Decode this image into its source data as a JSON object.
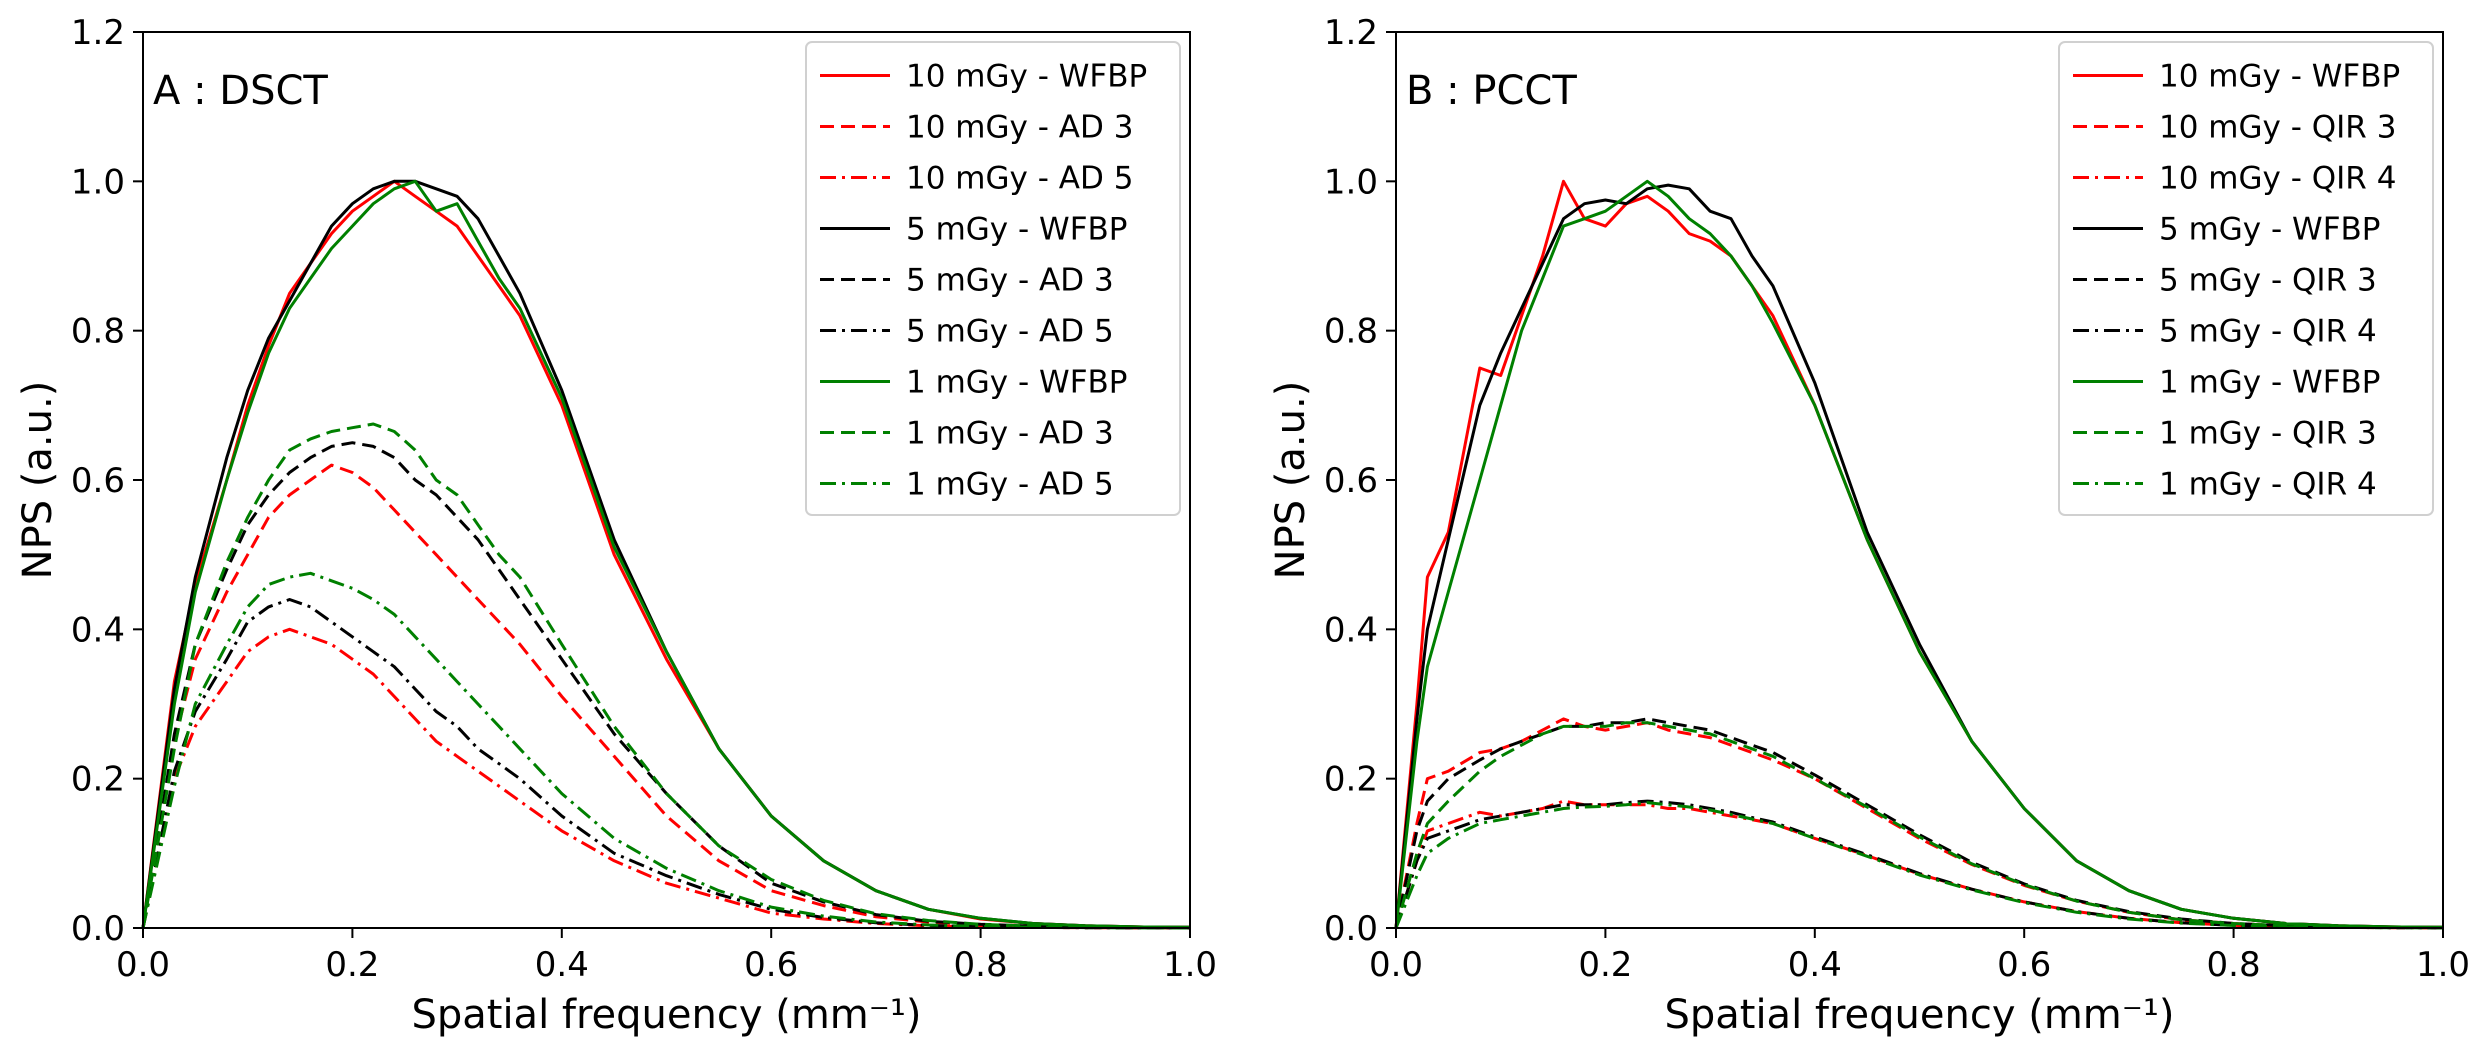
{
  "figure": {
    "description_free": true
  },
  "chart_data": [
    {
      "type": "line",
      "panel_label": "A : DSCT",
      "xlabel": "Spatial frequency (mm⁻¹)",
      "ylabel": "NPS (a.u.)",
      "xlim": [
        0,
        1.0
      ],
      "ylim": [
        0,
        1.2
      ],
      "xticks": [
        0.0,
        0.2,
        0.4,
        0.6,
        0.8,
        1.0
      ],
      "xtick_labels": [
        "0.0",
        "0.2",
        "0.4",
        "0.6",
        "0.8",
        "1.0"
      ],
      "yticks": [
        0.0,
        0.2,
        0.4,
        0.6,
        0.8,
        1.0,
        1.2
      ],
      "ytick_labels": [
        "0.0",
        "0.2",
        "0.4",
        "0.6",
        "0.8",
        "1.0",
        "1.2"
      ],
      "grid": false,
      "legend_position": "top-right",
      "x": [
        0.0,
        0.03,
        0.05,
        0.08,
        0.1,
        0.12,
        0.14,
        0.16,
        0.18,
        0.2,
        0.22,
        0.24,
        0.26,
        0.28,
        0.3,
        0.32,
        0.34,
        0.36,
        0.4,
        0.45,
        0.5,
        0.55,
        0.6,
        0.65,
        0.7,
        0.75,
        0.8,
        0.85,
        0.9,
        0.95,
        1.0
      ],
      "series": [
        {
          "name": "10 mGy - WFBP",
          "color": "#ff0000",
          "style": "solid",
          "values": [
            0.0,
            0.33,
            0.46,
            0.6,
            0.7,
            0.78,
            0.85,
            0.89,
            0.93,
            0.96,
            0.98,
            1.0,
            0.98,
            0.96,
            0.94,
            0.9,
            0.86,
            0.82,
            0.7,
            0.5,
            0.36,
            0.24,
            0.15,
            0.09,
            0.05,
            0.025,
            0.012,
            0.006,
            0.003,
            0.0015,
            0.001
          ]
        },
        {
          "name": "10 mGy - AD 3",
          "color": "#ff0000",
          "style": "dashed",
          "values": [
            0.0,
            0.25,
            0.36,
            0.45,
            0.5,
            0.55,
            0.58,
            0.6,
            0.62,
            0.61,
            0.59,
            0.56,
            0.53,
            0.5,
            0.47,
            0.44,
            0.41,
            0.38,
            0.31,
            0.23,
            0.15,
            0.09,
            0.05,
            0.03,
            0.015,
            0.008,
            0.004,
            0.002,
            0.001,
            0.0005,
            0.0003
          ]
        },
        {
          "name": "10 mGy - AD 5",
          "color": "#ff0000",
          "style": "dashdot",
          "values": [
            0.0,
            0.2,
            0.27,
            0.33,
            0.37,
            0.39,
            0.4,
            0.39,
            0.38,
            0.36,
            0.34,
            0.31,
            0.28,
            0.25,
            0.23,
            0.21,
            0.19,
            0.17,
            0.13,
            0.09,
            0.06,
            0.04,
            0.02,
            0.012,
            0.006,
            0.003,
            0.0015,
            0.0008,
            0.0004,
            0.0002,
            0.0001
          ]
        },
        {
          "name": "5 mGy - WFBP",
          "color": "#000000",
          "style": "solid",
          "values": [
            0.0,
            0.32,
            0.47,
            0.63,
            0.72,
            0.79,
            0.84,
            0.89,
            0.94,
            0.97,
            0.99,
            1.0,
            1.0,
            0.99,
            0.98,
            0.95,
            0.9,
            0.85,
            0.72,
            0.52,
            0.37,
            0.24,
            0.15,
            0.09,
            0.05,
            0.025,
            0.013,
            0.006,
            0.003,
            0.0015,
            0.001
          ]
        },
        {
          "name": "5 mGy - AD 3",
          "color": "#000000",
          "style": "dashed",
          "values": [
            0.0,
            0.26,
            0.38,
            0.48,
            0.54,
            0.58,
            0.61,
            0.63,
            0.645,
            0.65,
            0.645,
            0.63,
            0.6,
            0.58,
            0.55,
            0.52,
            0.48,
            0.44,
            0.36,
            0.26,
            0.18,
            0.11,
            0.06,
            0.035,
            0.018,
            0.009,
            0.005,
            0.0025,
            0.0012,
            0.0006,
            0.0003
          ]
        },
        {
          "name": "5 mGy - AD 5",
          "color": "#000000",
          "style": "dashdot",
          "values": [
            0.0,
            0.21,
            0.29,
            0.36,
            0.41,
            0.43,
            0.44,
            0.43,
            0.41,
            0.39,
            0.37,
            0.35,
            0.32,
            0.29,
            0.27,
            0.24,
            0.22,
            0.2,
            0.15,
            0.1,
            0.07,
            0.045,
            0.025,
            0.014,
            0.007,
            0.0035,
            0.0018,
            0.0009,
            0.0004,
            0.0002,
            0.0001
          ]
        },
        {
          "name": "1 mGy - WFBP",
          "color": "#008000",
          "style": "solid",
          "values": [
            0.0,
            0.3,
            0.45,
            0.6,
            0.69,
            0.77,
            0.83,
            0.87,
            0.91,
            0.94,
            0.97,
            0.99,
            1.0,
            0.96,
            0.97,
            0.92,
            0.87,
            0.83,
            0.71,
            0.51,
            0.37,
            0.24,
            0.15,
            0.09,
            0.05,
            0.025,
            0.013,
            0.006,
            0.003,
            0.0015,
            0.001
          ]
        },
        {
          "name": "1 mGy - AD 3",
          "color": "#008000",
          "style": "dashed",
          "values": [
            0.0,
            0.24,
            0.38,
            0.49,
            0.55,
            0.6,
            0.64,
            0.655,
            0.665,
            0.67,
            0.675,
            0.665,
            0.64,
            0.6,
            0.58,
            0.54,
            0.5,
            0.47,
            0.38,
            0.27,
            0.18,
            0.11,
            0.065,
            0.037,
            0.019,
            0.01,
            0.005,
            0.0025,
            0.0012,
            0.0006,
            0.0003
          ]
        },
        {
          "name": "1 mGy - AD 5",
          "color": "#008000",
          "style": "dashdot",
          "values": [
            0.0,
            0.19,
            0.3,
            0.38,
            0.43,
            0.46,
            0.47,
            0.475,
            0.465,
            0.455,
            0.44,
            0.42,
            0.39,
            0.36,
            0.33,
            0.3,
            0.27,
            0.24,
            0.18,
            0.12,
            0.08,
            0.05,
            0.028,
            0.016,
            0.008,
            0.004,
            0.002,
            0.001,
            0.0005,
            0.0002,
            0.0001
          ]
        }
      ]
    },
    {
      "type": "line",
      "panel_label": "B : PCCT",
      "xlabel": "Spatial frequency (mm⁻¹)",
      "ylabel": "NPS (a.u.)",
      "xlim": [
        0,
        1.0
      ],
      "ylim": [
        0,
        1.2
      ],
      "xticks": [
        0.0,
        0.2,
        0.4,
        0.6,
        0.8,
        1.0
      ],
      "xtick_labels": [
        "0.0",
        "0.2",
        "0.4",
        "0.6",
        "0.8",
        "1.0"
      ],
      "yticks": [
        0.0,
        0.2,
        0.4,
        0.6,
        0.8,
        1.0,
        1.2
      ],
      "ytick_labels": [
        "0.0",
        "0.2",
        "0.4",
        "0.6",
        "0.8",
        "1.0",
        "1.2"
      ],
      "grid": false,
      "legend_position": "top-right",
      "x": [
        0.0,
        0.02,
        0.03,
        0.05,
        0.08,
        0.1,
        0.12,
        0.14,
        0.16,
        0.18,
        0.2,
        0.22,
        0.24,
        0.26,
        0.28,
        0.3,
        0.32,
        0.34,
        0.36,
        0.4,
        0.45,
        0.5,
        0.55,
        0.6,
        0.65,
        0.7,
        0.75,
        0.8,
        0.85,
        0.9,
        0.95,
        1.0
      ],
      "series": [
        {
          "name": "10 mGy - WFBP",
          "color": "#ff0000",
          "style": "solid",
          "values": [
            0.0,
            0.3,
            0.47,
            0.53,
            0.75,
            0.74,
            0.82,
            0.9,
            1.0,
            0.95,
            0.94,
            0.97,
            0.98,
            0.96,
            0.93,
            0.92,
            0.9,
            0.86,
            0.82,
            0.7,
            0.52,
            0.37,
            0.25,
            0.16,
            0.09,
            0.05,
            0.025,
            0.013,
            0.006,
            0.003,
            0.0015,
            0.001
          ]
        },
        {
          "name": "10 mGy - QIR 3",
          "color": "#ff0000",
          "style": "dashed",
          "values": [
            0.0,
            0.14,
            0.2,
            0.21,
            0.235,
            0.24,
            0.25,
            0.265,
            0.28,
            0.27,
            0.265,
            0.27,
            0.275,
            0.265,
            0.26,
            0.255,
            0.245,
            0.235,
            0.225,
            0.2,
            0.16,
            0.12,
            0.085,
            0.057,
            0.036,
            0.021,
            0.011,
            0.006,
            0.003,
            0.0015,
            0.0008,
            0.0004
          ]
        },
        {
          "name": "10 mGy - QIR 4",
          "color": "#ff0000",
          "style": "dashdot",
          "values": [
            0.0,
            0.09,
            0.13,
            0.14,
            0.155,
            0.15,
            0.155,
            0.16,
            0.17,
            0.165,
            0.165,
            0.165,
            0.165,
            0.16,
            0.16,
            0.155,
            0.15,
            0.145,
            0.14,
            0.12,
            0.097,
            0.072,
            0.052,
            0.035,
            0.022,
            0.013,
            0.007,
            0.0035,
            0.0017,
            0.0008,
            0.0004,
            0.0002
          ]
        },
        {
          "name": "5 mGy - WFBP",
          "color": "#000000",
          "style": "solid",
          "values": [
            0.0,
            0.28,
            0.4,
            0.52,
            0.7,
            0.77,
            0.83,
            0.89,
            0.95,
            0.97,
            0.975,
            0.97,
            0.99,
            0.995,
            0.99,
            0.96,
            0.95,
            0.9,
            0.86,
            0.73,
            0.53,
            0.38,
            0.25,
            0.16,
            0.09,
            0.05,
            0.025,
            0.013,
            0.006,
            0.003,
            0.0015,
            0.001
          ]
        },
        {
          "name": "5 mGy - QIR 3",
          "color": "#000000",
          "style": "dashed",
          "values": [
            0.0,
            0.13,
            0.17,
            0.2,
            0.225,
            0.24,
            0.25,
            0.26,
            0.27,
            0.27,
            0.275,
            0.275,
            0.28,
            0.275,
            0.27,
            0.265,
            0.255,
            0.245,
            0.235,
            0.205,
            0.165,
            0.125,
            0.088,
            0.059,
            0.037,
            0.022,
            0.012,
            0.006,
            0.003,
            0.0015,
            0.0008,
            0.0004
          ]
        },
        {
          "name": "5 mGy - QIR 4",
          "color": "#000000",
          "style": "dashdot",
          "values": [
            0.0,
            0.09,
            0.12,
            0.13,
            0.145,
            0.15,
            0.155,
            0.16,
            0.165,
            0.165,
            0.165,
            0.168,
            0.17,
            0.168,
            0.165,
            0.16,
            0.155,
            0.148,
            0.142,
            0.122,
            0.098,
            0.073,
            0.052,
            0.035,
            0.022,
            0.013,
            0.007,
            0.0035,
            0.0017,
            0.0008,
            0.0004,
            0.0002
          ]
        },
        {
          "name": "1 mGy - WFBP",
          "color": "#008000",
          "style": "solid",
          "values": [
            0.0,
            0.25,
            0.35,
            0.45,
            0.6,
            0.7,
            0.8,
            0.87,
            0.94,
            0.95,
            0.96,
            0.98,
            1.0,
            0.98,
            0.95,
            0.93,
            0.9,
            0.86,
            0.81,
            0.7,
            0.52,
            0.37,
            0.25,
            0.16,
            0.09,
            0.05,
            0.025,
            0.013,
            0.006,
            0.003,
            0.0015,
            0.001
          ]
        },
        {
          "name": "1 mGy - QIR 3",
          "color": "#008000",
          "style": "dashed",
          "values": [
            0.0,
            0.1,
            0.14,
            0.17,
            0.21,
            0.23,
            0.245,
            0.26,
            0.27,
            0.27,
            0.27,
            0.275,
            0.275,
            0.27,
            0.265,
            0.26,
            0.25,
            0.24,
            0.23,
            0.2,
            0.162,
            0.122,
            0.086,
            0.058,
            0.036,
            0.021,
            0.011,
            0.006,
            0.003,
            0.0015,
            0.0008,
            0.0004
          ]
        },
        {
          "name": "1 mGy - QIR 4",
          "color": "#008000",
          "style": "dashdot",
          "values": [
            0.0,
            0.07,
            0.1,
            0.12,
            0.14,
            0.145,
            0.15,
            0.155,
            0.16,
            0.162,
            0.163,
            0.165,
            0.168,
            0.165,
            0.162,
            0.158,
            0.152,
            0.146,
            0.14,
            0.12,
            0.096,
            0.071,
            0.051,
            0.034,
            0.021,
            0.012,
            0.0065,
            0.0033,
            0.0016,
            0.0008,
            0.0004,
            0.0002
          ]
        }
      ]
    }
  ]
}
